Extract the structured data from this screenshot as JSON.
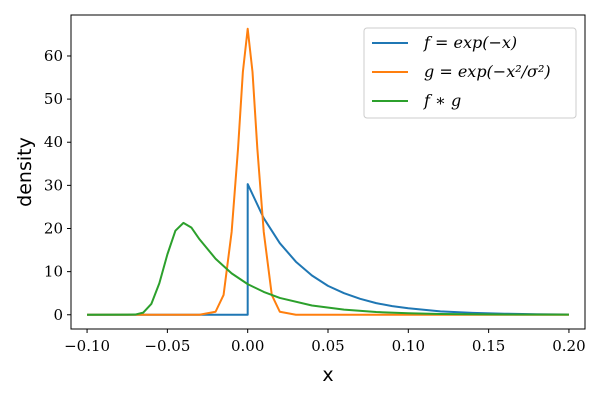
{
  "chart_data": {
    "type": "line",
    "xlabel": "x",
    "ylabel": "density",
    "xlim": [
      -0.11,
      0.21
    ],
    "ylim": [
      -3.3,
      69.5
    ],
    "x_ticks": [
      -0.1,
      -0.05,
      0.0,
      0.05,
      0.1,
      0.15,
      0.2
    ],
    "x_tick_labels": [
      "−0.10",
      "−0.05",
      "0.00",
      "0.05",
      "0.10",
      "0.15",
      "0.20"
    ],
    "y_ticks": [
      0,
      10,
      20,
      30,
      40,
      50,
      60
    ],
    "y_tick_labels": [
      "0",
      "10",
      "20",
      "30",
      "40",
      "50",
      "60"
    ],
    "grid": false,
    "legend_position": "top-right",
    "series": [
      {
        "name": "f = exp(−x)",
        "color": "#1f77b4",
        "x": [
          -0.1,
          -0.05,
          0.0,
          0.0,
          0.01,
          0.02,
          0.03,
          0.04,
          0.05,
          0.06,
          0.07,
          0.08,
          0.09,
          0.1,
          0.12,
          0.14,
          0.16,
          0.18,
          0.2
        ],
        "y": [
          0,
          0,
          0,
          30.3,
          22.4,
          16.6,
          12.3,
          9.1,
          6.7,
          5.0,
          3.7,
          2.7,
          2.0,
          1.5,
          0.8,
          0.45,
          0.25,
          0.13,
          0.07
        ]
      },
      {
        "name": "g = exp(−x²/σ²)",
        "color": "#ff7f0e",
        "x": [
          -0.1,
          -0.03,
          -0.02,
          -0.015,
          -0.01,
          -0.006,
          -0.003,
          0.0,
          0.003,
          0.006,
          0.01,
          0.015,
          0.02,
          0.03,
          0.2
        ],
        "y": [
          0,
          0,
          0.7,
          4.6,
          19.2,
          38.6,
          56.3,
          66.3,
          56.3,
          38.6,
          19.2,
          4.6,
          0.7,
          0,
          0
        ]
      },
      {
        "name": "f ∗ g",
        "color": "#2ca02c",
        "x": [
          -0.1,
          -0.07,
          -0.065,
          -0.06,
          -0.055,
          -0.05,
          -0.045,
          -0.04,
          -0.035,
          -0.03,
          -0.02,
          -0.01,
          0.0,
          0.01,
          0.02,
          0.04,
          0.06,
          0.08,
          0.1,
          0.12,
          0.15,
          0.2
        ],
        "y": [
          0,
          0.05,
          0.5,
          2.5,
          7.3,
          14.0,
          19.5,
          21.3,
          20.2,
          17.5,
          13.0,
          9.6,
          7.1,
          5.3,
          3.9,
          2.15,
          1.2,
          0.64,
          0.35,
          0.19,
          0.08,
          0.02
        ]
      }
    ]
  }
}
